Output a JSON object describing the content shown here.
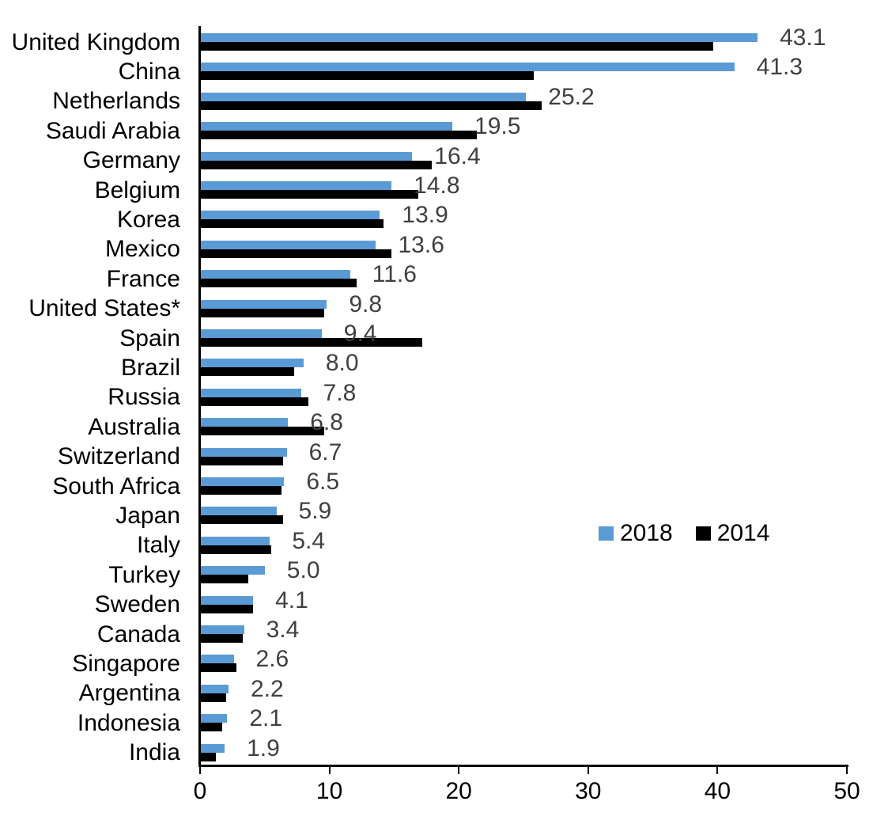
{
  "chart_data": {
    "type": "bar",
    "orientation": "horizontal",
    "title": "",
    "xlabel": "",
    "ylabel": "",
    "grid": false,
    "xlim": [
      0,
      50
    ],
    "x_ticks": [
      "0",
      "10",
      "20",
      "30",
      "40",
      "50"
    ],
    "categories": [
      "United Kingdom",
      "China",
      "Netherlands",
      "Saudi Arabia",
      "Germany",
      "Belgium",
      "Korea",
      "Mexico",
      "France",
      "United States*",
      "Spain",
      "Brazil",
      "Russia",
      "Australia",
      "Switzerland",
      "South Africa",
      "Japan",
      "Italy",
      "Turkey",
      "Sweden",
      "Canada",
      "Singapore",
      "Argentina",
      "Indonesia",
      "India"
    ],
    "series": [
      {
        "name": "2018",
        "color": "#5B9BD5",
        "values": [
          43.1,
          41.3,
          25.2,
          19.5,
          16.4,
          14.8,
          13.9,
          13.6,
          11.6,
          9.8,
          9.4,
          8.0,
          7.8,
          6.8,
          6.7,
          6.5,
          5.9,
          5.4,
          5.0,
          4.1,
          3.4,
          2.6,
          2.2,
          2.1,
          1.9
        ]
      },
      {
        "name": "2014",
        "color": "#000000",
        "values": [
          39.7,
          25.8,
          26.4,
          21.4,
          17.9,
          16.9,
          14.2,
          14.8,
          12.1,
          9.6,
          17.2,
          7.3,
          8.4,
          9.6,
          6.4,
          6.3,
          6.4,
          5.5,
          3.7,
          4.1,
          3.3,
          2.8,
          2.0,
          1.7,
          1.2
        ]
      }
    ],
    "value_labels": [
      "43.1",
      "41.3",
      "25.2",
      "19.5",
      "16.4",
      "14.8",
      "13.9",
      "13.6",
      "11.6",
      "9.8",
      "9.4",
      "8.0",
      "7.8",
      "6.8",
      "6.7",
      "6.5",
      "5.9",
      "5.4",
      "5.0",
      "4.1",
      "3.4",
      "2.6",
      "2.2",
      "2.1",
      "1.9"
    ],
    "value_label_color": "#404040",
    "legend": {
      "position": "middle-right",
      "entries": [
        {
          "label": "2018",
          "color": "#5B9BD5"
        },
        {
          "label": "2014",
          "color": "#000000"
        }
      ]
    }
  }
}
